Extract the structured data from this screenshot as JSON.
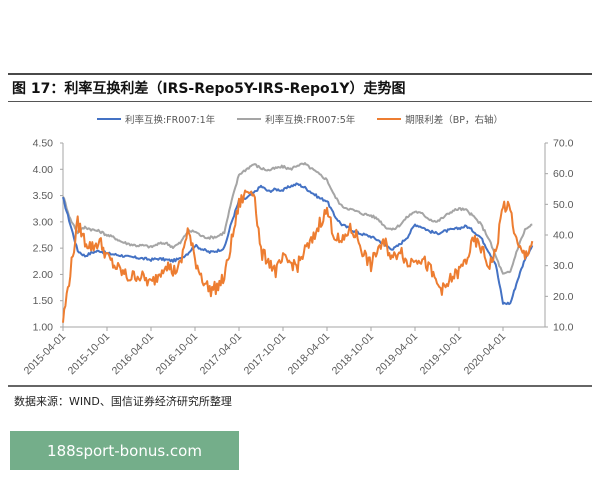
{
  "figure": {
    "title": "图 17：利率互换利差（IRS-Repo5Y-IRS-Repo1Y）走势图",
    "source": "数据来源：WIND、国信证券经济研究所整理"
  },
  "legend": [
    {
      "label": "利率互换:FR007:1年",
      "color": "#4472c4"
    },
    {
      "label": "利率互换:FR007:5年",
      "color": "#a5a5a5"
    },
    {
      "label": "期限利差（BP，右轴）",
      "color": "#ed7d31"
    }
  ],
  "watermark": {
    "text": "188sport-bonus.com"
  },
  "chart_data": {
    "type": "line",
    "title": "利率互换利差（IRS-Repo5Y-IRS-Repo1Y）走势图",
    "xlabel": "",
    "ylabel": "",
    "y2label": "期限利差（BP）",
    "ylim": [
      1.0,
      4.5
    ],
    "y2lim": [
      10.0,
      70.0
    ],
    "yticks": [
      "1.00",
      "1.50",
      "2.00",
      "2.50",
      "3.00",
      "3.50",
      "4.00",
      "4.50"
    ],
    "y2ticks": [
      "10.0",
      "20.0",
      "30.0",
      "40.0",
      "50.0",
      "60.0",
      "70.0"
    ],
    "xticks": [
      "2015-04-01",
      "2015-10-01",
      "2016-04-01",
      "2016-10-01",
      "2017-04-01",
      "2017-10-01",
      "2018-04-01",
      "2018-10-01",
      "2019-04-01",
      "2019-10-01",
      "2020-04-01"
    ],
    "grid": false,
    "legend_position": "top",
    "x": [
      "2015-04",
      "2015-05",
      "2015-06",
      "2015-07",
      "2015-08",
      "2015-09",
      "2015-10",
      "2015-11",
      "2015-12",
      "2016-01",
      "2016-02",
      "2016-03",
      "2016-04",
      "2016-05",
      "2016-06",
      "2016-07",
      "2016-08",
      "2016-09",
      "2016-10",
      "2016-11",
      "2016-12",
      "2017-01",
      "2017-02",
      "2017-03",
      "2017-04",
      "2017-05",
      "2017-06",
      "2017-07",
      "2017-08",
      "2017-09",
      "2017-10",
      "2017-11",
      "2017-12",
      "2018-01",
      "2018-02",
      "2018-03",
      "2018-04",
      "2018-05",
      "2018-06",
      "2018-07",
      "2018-08",
      "2018-09",
      "2018-10",
      "2018-11",
      "2018-12",
      "2019-01",
      "2019-02",
      "2019-03",
      "2019-04",
      "2019-05",
      "2019-06",
      "2019-07",
      "2019-08",
      "2019-09",
      "2019-10",
      "2019-11",
      "2019-12",
      "2020-01",
      "2020-02",
      "2020-03",
      "2020-04",
      "2020-05",
      "2020-06",
      "2020-07",
      "2020-08"
    ],
    "series": [
      {
        "name": "利率互换:FR007:1年",
        "axis": "left",
        "color": "#4472c4",
        "values": [
          3.45,
          2.95,
          2.45,
          2.35,
          2.42,
          2.45,
          2.4,
          2.38,
          2.36,
          2.33,
          2.32,
          2.3,
          2.28,
          2.3,
          2.28,
          2.26,
          2.3,
          2.4,
          2.55,
          2.48,
          2.42,
          2.45,
          2.5,
          3.0,
          3.4,
          3.45,
          3.55,
          3.68,
          3.58,
          3.62,
          3.6,
          3.68,
          3.72,
          3.65,
          3.55,
          3.45,
          3.4,
          3.12,
          2.95,
          2.88,
          2.8,
          2.76,
          2.72,
          2.65,
          2.55,
          2.48,
          2.58,
          2.72,
          2.95,
          2.9,
          2.82,
          2.78,
          2.82,
          2.85,
          2.88,
          2.92,
          2.82,
          2.7,
          2.45,
          2.2,
          1.45,
          1.45,
          1.9,
          2.3,
          2.55
        ]
      },
      {
        "name": "利率互换:FR007:5年",
        "axis": "left",
        "color": "#a5a5a5",
        "values": [
          3.5,
          3.05,
          2.8,
          2.9,
          2.85,
          2.82,
          2.75,
          2.7,
          2.62,
          2.58,
          2.55,
          2.55,
          2.52,
          2.58,
          2.6,
          2.52,
          2.6,
          2.82,
          2.82,
          2.72,
          2.7,
          2.72,
          2.8,
          3.4,
          3.9,
          4.0,
          4.1,
          4.02,
          3.98,
          4.02,
          4.05,
          4.0,
          4.08,
          4.1,
          4.0,
          3.9,
          3.8,
          3.5,
          3.3,
          3.25,
          3.2,
          3.15,
          3.12,
          3.05,
          2.9,
          2.85,
          2.95,
          3.1,
          3.2,
          3.15,
          3.05,
          3.0,
          3.1,
          3.2,
          3.25,
          3.22,
          3.1,
          2.95,
          2.7,
          2.35,
          2.0,
          2.05,
          2.5,
          2.85,
          2.95
        ]
      },
      {
        "name": "期限利差（BP，右轴）",
        "axis": "right",
        "color": "#ed7d31",
        "values": [
          12.0,
          28.0,
          44.0,
          38.0,
          36.0,
          38.0,
          33.0,
          30.0,
          28.0,
          26.0,
          27.0,
          26.0,
          24.0,
          27.0,
          31.0,
          28.0,
          30.0,
          42.0,
          32.0,
          26.0,
          22.0,
          23.0,
          26.0,
          38.0,
          50.0,
          54.0,
          55.0,
          34.0,
          32.0,
          28.0,
          32.0,
          31.0,
          30.0,
          35.0,
          38.0,
          44.0,
          48.0,
          40.0,
          37.0,
          42.0,
          40.0,
          34.0,
          30.0,
          36.0,
          37.0,
          32.0,
          36.0,
          30.0,
          33.0,
          32.0,
          29.0,
          24.0,
          22.0,
          26.0,
          28.0,
          32.0,
          38.0,
          36.0,
          30.0,
          34.0,
          50.0,
          48.0,
          36.0,
          33.0,
          38.0
        ]
      }
    ]
  }
}
